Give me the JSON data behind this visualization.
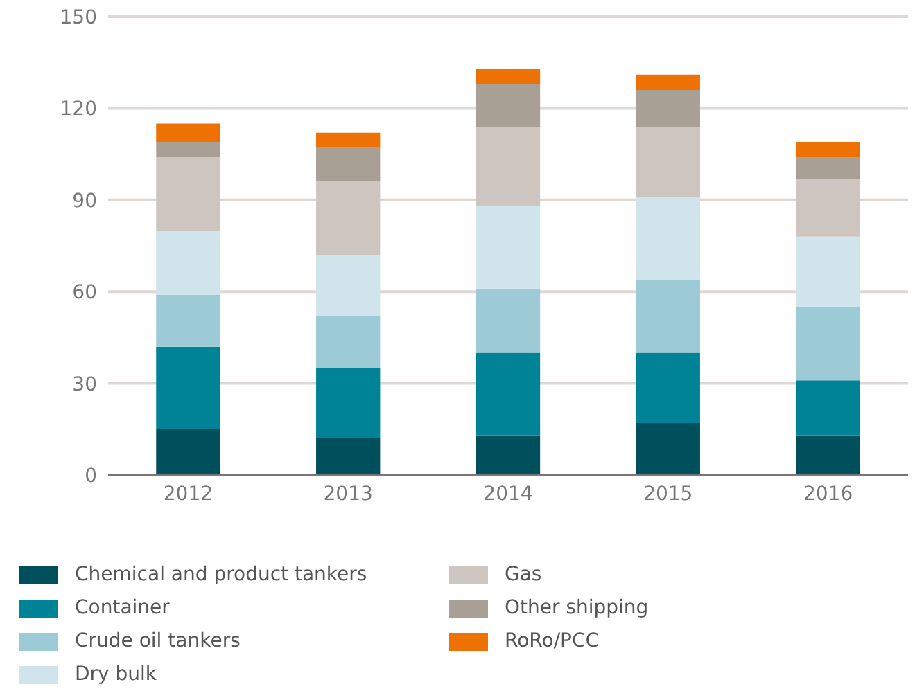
{
  "chart_data": {
    "type": "bar",
    "stacked": true,
    "categories": [
      "2012",
      "2013",
      "2014",
      "2015",
      "2016"
    ],
    "series": [
      {
        "name": "Chemical and product tankers",
        "color": "#004f5c",
        "values": [
          15,
          12,
          13,
          17,
          13
        ]
      },
      {
        "name": "Container",
        "color": "#008396",
        "values": [
          27,
          23,
          27,
          23,
          18
        ]
      },
      {
        "name": "Crude oil tankers",
        "color": "#9ccad5",
        "values": [
          17,
          17,
          21,
          24,
          24
        ]
      },
      {
        "name": "Dry bulk",
        "color": "#d0e4eb",
        "values": [
          21,
          20,
          27,
          27,
          23
        ]
      },
      {
        "name": "Gas",
        "color": "#cdc6c0",
        "values": [
          24,
          24,
          26,
          23,
          19
        ]
      },
      {
        "name": "Other shipping",
        "color": "#a89f95",
        "values": [
          5,
          11,
          14,
          12,
          7
        ]
      },
      {
        "name": "RoRo/PCC",
        "color": "#ee7203",
        "values": [
          6,
          5,
          5,
          5,
          5
        ]
      }
    ],
    "ylim": [
      0,
      150
    ],
    "yticks": [
      0,
      30,
      60,
      90,
      120,
      150
    ],
    "grid": "y",
    "legend": "bottom"
  }
}
